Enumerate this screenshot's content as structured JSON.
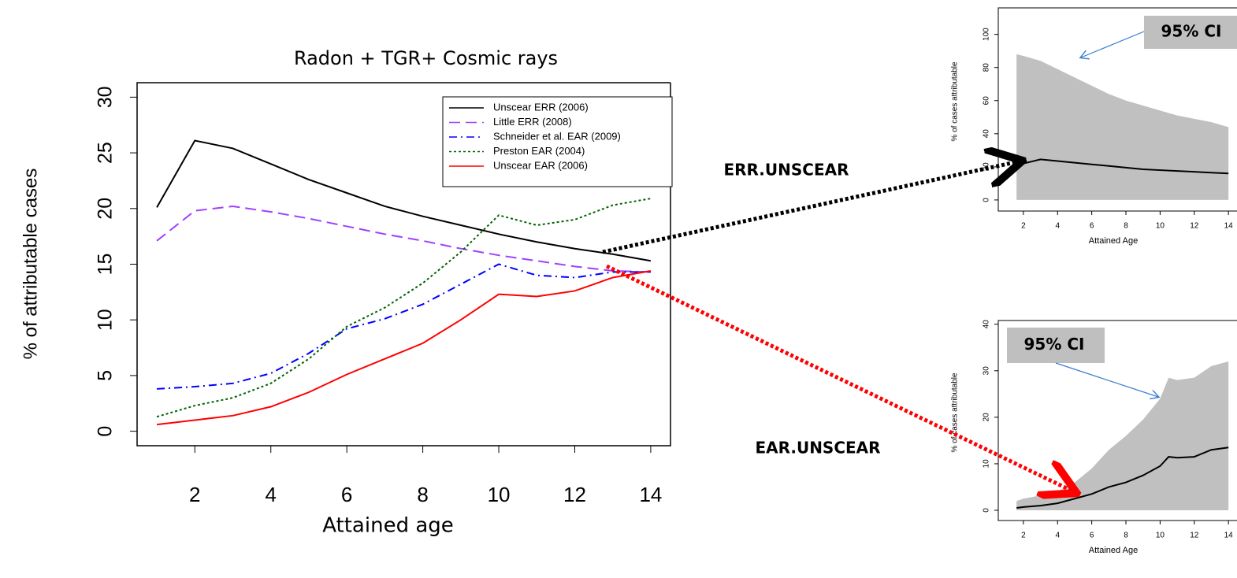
{
  "chart_data": [
    {
      "type": "line",
      "title": "Radon + TGR+ Cosmic rays",
      "xlabel": "Attained age",
      "ylabel": "% of attributable cases",
      "x": [
        1,
        2,
        3,
        4,
        5,
        6,
        7,
        8,
        9,
        10,
        11,
        12,
        13,
        14
      ],
      "xlim": [
        0.48,
        14.52
      ],
      "xticks": [
        2,
        4,
        6,
        8,
        10,
        12,
        14
      ],
      "ylim": [
        -1.3,
        31.3
      ],
      "yticks": [
        0,
        5,
        10,
        15,
        20,
        25,
        30
      ],
      "legend": "upper-right",
      "series": [
        {
          "name": "Unscear ERR (2006)",
          "color": "#000000",
          "linestyle": "solid",
          "values": [
            20.1,
            26.1,
            25.4,
            24.0,
            22.6,
            21.4,
            20.2,
            19.3,
            18.5,
            17.7,
            17.0,
            16.4,
            15.9,
            15.3
          ]
        },
        {
          "name": "Little ERR (2008)",
          "color": "#a040ff",
          "linestyle": "dashed",
          "values": [
            17.1,
            19.8,
            20.2,
            19.7,
            19.1,
            18.4,
            17.7,
            17.1,
            16.4,
            15.8,
            15.3,
            14.8,
            14.4,
            14.3
          ]
        },
        {
          "name": "Schneider et al. EAR (2009)",
          "color": "#0000ff",
          "linestyle": "dotdash",
          "values": [
            3.8,
            4.0,
            4.3,
            5.2,
            7.0,
            9.2,
            10.1,
            11.4,
            13.2,
            15.0,
            14.0,
            13.8,
            14.3,
            14.3
          ]
        },
        {
          "name": "Preston EAR (2004)",
          "color": "#006400",
          "linestyle": "dotted",
          "values": [
            1.3,
            2.3,
            3.0,
            4.3,
            6.5,
            9.4,
            11.1,
            13.3,
            16.1,
            19.4,
            18.5,
            19.0,
            20.3,
            20.9
          ]
        },
        {
          "name": "Unscear EAR (2006)",
          "color": "#ff0000",
          "linestyle": "solid",
          "values": [
            0.6,
            1.0,
            1.4,
            2.2,
            3.5,
            5.1,
            6.5,
            7.9,
            10.0,
            12.3,
            12.1,
            12.6,
            13.8,
            14.4
          ]
        }
      ],
      "annotations": [
        "ERR.UNSCEAR",
        "EAR.UNSCEAR"
      ]
    },
    {
      "type": "band",
      "xlabel": "Attained Age",
      "ylabel": "% of cases attributable",
      "annotation": "95% CI",
      "x": [
        1.6,
        2,
        3,
        4,
        5,
        6,
        7,
        8,
        9,
        10,
        11,
        12,
        13,
        14
      ],
      "xlim": [
        0.53,
        14.5
      ],
      "xticks": [
        2,
        4,
        6,
        8,
        10,
        12,
        14
      ],
      "ylim": [
        -6.7,
        116
      ],
      "yticks": [
        0,
        20,
        40,
        60,
        80,
        100
      ],
      "color": "#000000",
      "band_color": "#c0c0c0",
      "ci_upper": [
        88,
        87,
        84,
        79,
        74,
        69,
        64,
        60,
        57,
        54,
        51,
        49,
        47,
        44
      ],
      "values": [
        20,
        22,
        24.5,
        23.5,
        22.5,
        21.5,
        20.5,
        19.5,
        18.5,
        18,
        17.5,
        17,
        16.5,
        16
      ]
    },
    {
      "type": "band",
      "xlabel": "Attained Age",
      "ylabel": "% of cases attributable",
      "annotation": "95% CI",
      "x": [
        1.6,
        2,
        3,
        4,
        5,
        6,
        7,
        8,
        9,
        10,
        10.5,
        11,
        12,
        13,
        14
      ],
      "xlim": [
        0.53,
        14.5
      ],
      "xticks": [
        2,
        4,
        6,
        8,
        10,
        12,
        14
      ],
      "ylim": [
        -2.2,
        40.8
      ],
      "yticks": [
        0,
        10,
        20,
        30,
        40
      ],
      "color": "#000000",
      "band_color": "#c0c0c0",
      "ci_upper": [
        2,
        2.5,
        3.2,
        4,
        6,
        9,
        13,
        16,
        19.5,
        24,
        28.5,
        28,
        28.5,
        31,
        32
      ],
      "values": [
        0.5,
        0.7,
        1,
        1.5,
        2.5,
        3.5,
        5,
        6,
        7.5,
        9.5,
        11.5,
        11.3,
        11.5,
        13,
        13.5
      ]
    }
  ]
}
